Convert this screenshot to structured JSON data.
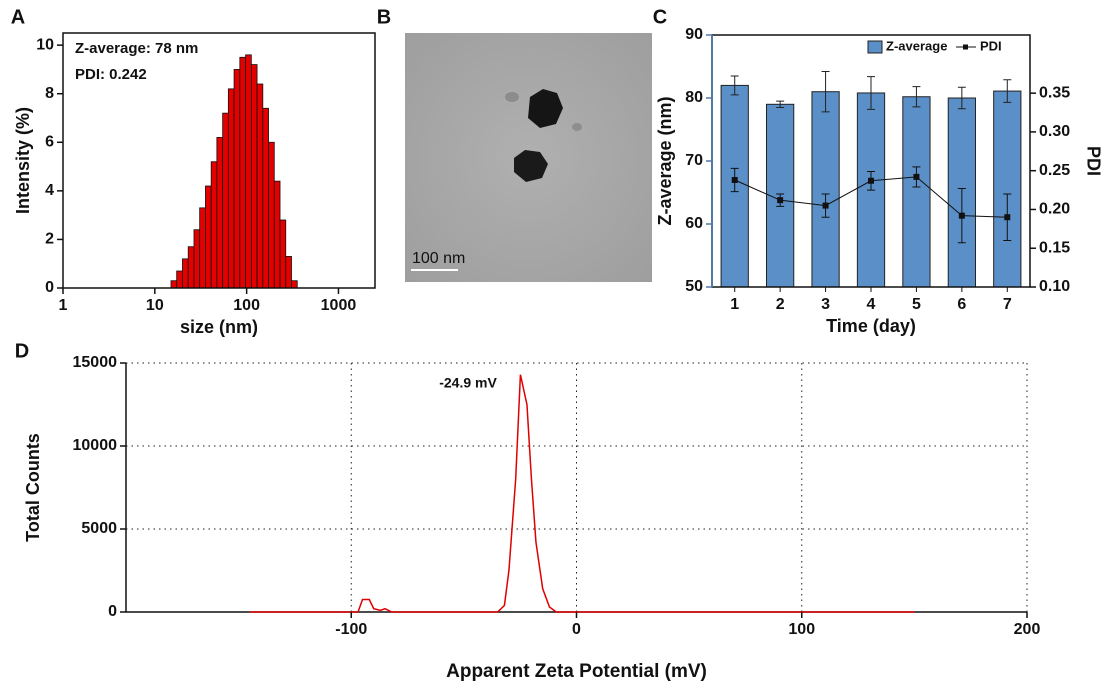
{
  "chart_data": [
    {
      "type": "histogram",
      "panel": "A",
      "xlabel": "size (nm)",
      "ylabel": "Intensity (%)",
      "annotations": [
        "Z-average: 78 nm",
        "PDI: 0.242"
      ],
      "bins": [
        15,
        17.3,
        20,
        23.1,
        26.7,
        30.8,
        35.6,
        41.1,
        47.4,
        54.8,
        63.2,
        73,
        84.3,
        97.4,
        112.5,
        129.9,
        150,
        173.2,
        200,
        231,
        266.7,
        308,
        355.7
      ],
      "values": [
        0.3,
        0.7,
        1.2,
        1.7,
        2.4,
        3.3,
        4.2,
        5.2,
        6.2,
        7.2,
        8.2,
        9.0,
        9.5,
        9.6,
        9.2,
        8.4,
        7.4,
        6.0,
        4.4,
        2.8,
        1.3,
        0.3
      ],
      "color": "#e50000",
      "xscale": "log",
      "xlim": [
        1,
        2500
      ],
      "xticks": [
        1,
        10,
        100,
        1000
      ],
      "ylim": [
        0,
        10.5
      ],
      "yticks": [
        0,
        2,
        4,
        6,
        8,
        10
      ]
    },
    {
      "type": "image",
      "panel": "B",
      "scale_bar": "100 nm"
    },
    {
      "type": "bar",
      "panel": "C",
      "xlabel": "Time (day)",
      "ylabel": "Z-average (nm)",
      "y2label": "PDI",
      "categories": [
        "1",
        "2",
        "3",
        "4",
        "5",
        "6",
        "7"
      ],
      "series": [
        {
          "name": "Z-average",
          "color": "#5b8fc7",
          "values": [
            82,
            79,
            81,
            80.8,
            80.2,
            80,
            81.1
          ],
          "errors": [
            1.5,
            0.5,
            3.2,
            2.6,
            1.6,
            1.7,
            1.8
          ]
        },
        {
          "name": "PDI",
          "color": "#111111",
          "axis": "y2",
          "values": [
            0.238,
            0.212,
            0.205,
            0.237,
            0.242,
            0.192,
            0.19
          ],
          "errors": [
            0.015,
            0.008,
            0.015,
            0.012,
            0.013,
            0.035,
            0.03
          ]
        }
      ],
      "ylim": [
        50,
        90
      ],
      "yticks": [
        50,
        60,
        70,
        80,
        90
      ],
      "y2lim": [
        0.1,
        0.425
      ],
      "y2ticks": [
        {
          "value": 0.1,
          "label": "0.10"
        },
        0.15,
        {
          "value": 0.2,
          "label": "0.20"
        },
        0.25,
        {
          "value": 0.3,
          "label": "0.30"
        },
        0.35
      ],
      "axis_color": "#4f7aa6",
      "legend": "top-right"
    },
    {
      "type": "line",
      "panel": "D",
      "xlabel": "Apparent Zeta Potential (mV)",
      "ylabel": "Total Counts",
      "annotation": "-24.9 mV",
      "x": [
        -145,
        -100,
        -97,
        -95,
        -92,
        -90,
        -87,
        -85,
        -82,
        -35,
        -32,
        -30,
        -27,
        -24.9,
        -22,
        -20,
        -18,
        -15,
        -12,
        -9,
        -5,
        150
      ],
      "values": [
        0,
        0,
        0,
        750,
        750,
        200,
        100,
        200,
        0,
        0,
        400,
        2500,
        8000,
        14300,
        12500,
        8000,
        4200,
        1400,
        300,
        0,
        0,
        0
      ],
      "color": "#e00000",
      "xlim": [
        -200,
        200
      ],
      "xticks": [
        -100,
        0,
        100,
        200
      ],
      "ylim": [
        0,
        15000
      ],
      "yticks": [
        0,
        5000,
        10000,
        15000
      ],
      "grid": true
    }
  ]
}
